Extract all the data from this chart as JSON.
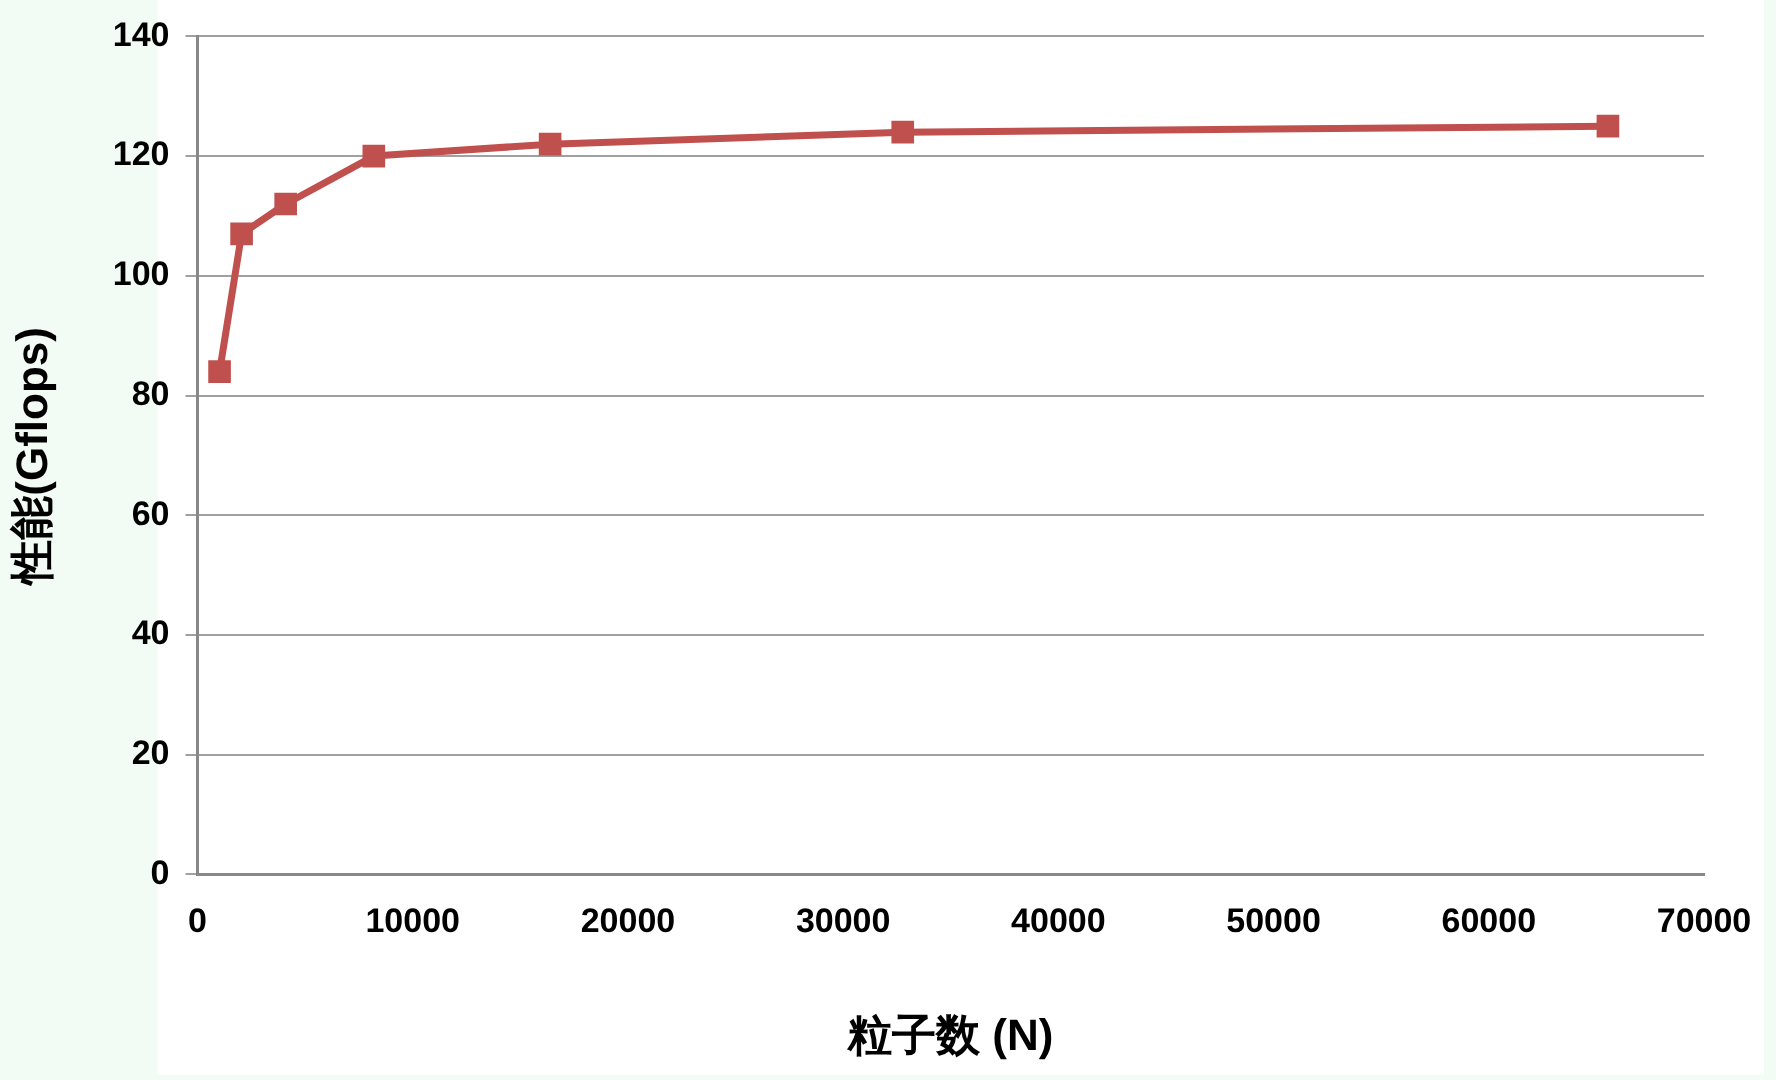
{
  "chart_data": {
    "type": "line",
    "xlabel": "粒子数 (N)",
    "ylabel": "性能(Gflops)",
    "x": [
      1024,
      2048,
      4096,
      8192,
      16384,
      32768,
      65536
    ],
    "series": [
      {
        "color": "#c0504d",
        "values": [
          84,
          107,
          112,
          120,
          122,
          124,
          125
        ]
      }
    ],
    "xlim": [
      0,
      70000
    ],
    "xticks": [
      0,
      10000,
      20000,
      30000,
      40000,
      50000,
      60000,
      70000
    ],
    "ylim": [
      0,
      140
    ],
    "yticks": [
      0,
      20,
      40,
      60,
      80,
      100,
      120,
      140
    ],
    "grid": "y",
    "legend": false,
    "marker": "square",
    "line_style": "solid"
  }
}
